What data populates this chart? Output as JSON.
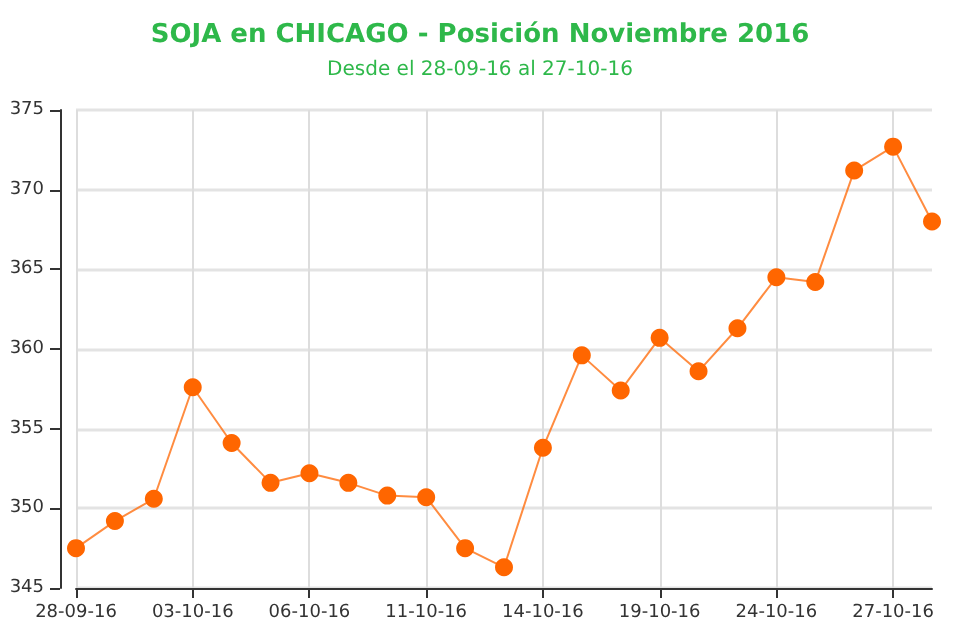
{
  "chart_data": {
    "type": "line",
    "title": "SOJA en CHICAGO - Posición Noviembre 2016",
    "subtitle": "Desde el 28-09-16 al 27-10-16",
    "categories": [
      "28-09-16",
      null,
      null,
      "03-10-16",
      null,
      null,
      "06-10-16",
      null,
      null,
      "11-10-16",
      null,
      null,
      "14-10-16",
      null,
      null,
      "19-10-16",
      null,
      null,
      "24-10-16",
      null,
      null,
      "27-10-16",
      null
    ],
    "series": [
      {
        "color": "#ff6600",
        "values": [
          347.5,
          349.2,
          350.6,
          357.6,
          354.1,
          351.6,
          352.2,
          351.6,
          350.8,
          350.7,
          347.5,
          346.3,
          353.8,
          359.6,
          357.4,
          360.7,
          358.6,
          361.3,
          364.5,
          364.2,
          371.2,
          372.7,
          368.0
        ]
      }
    ],
    "ylim": [
      345,
      375
    ],
    "yticks": [
      345,
      350,
      355,
      360,
      365,
      370,
      375
    ],
    "grid": true,
    "marker": "circle",
    "line_style": "solid"
  }
}
